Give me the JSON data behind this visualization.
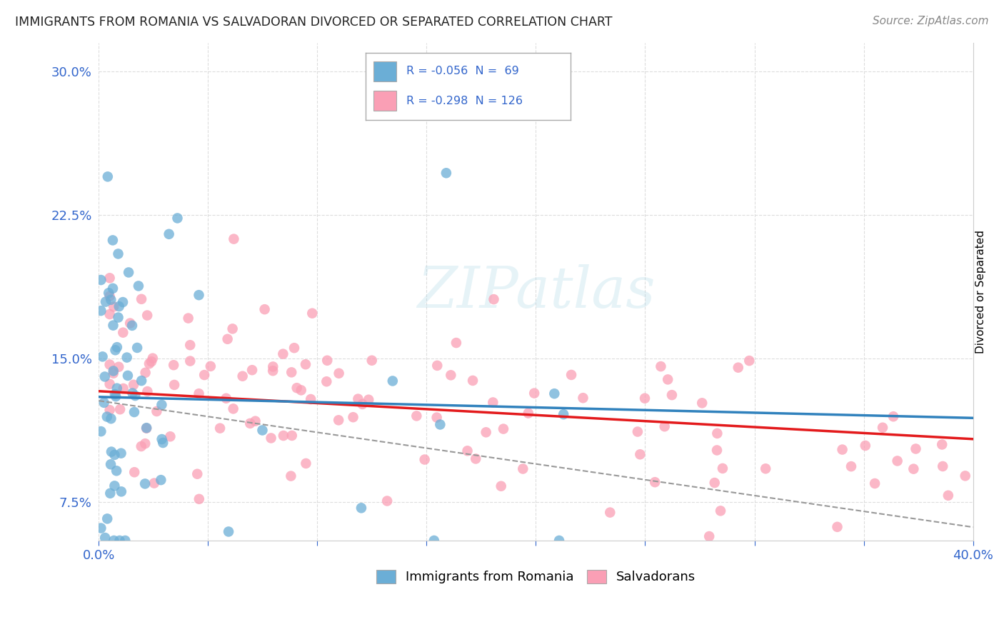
{
  "title": "IMMIGRANTS FROM ROMANIA VS SALVADORAN DIVORCED OR SEPARATED CORRELATION CHART",
  "source": "Source: ZipAtlas.com",
  "ylabel": "Divorced or Separated",
  "legend1_label": "R = -0.056  N =  69",
  "legend2_label": "R = -0.298  N = 126",
  "legend1_R": -0.056,
  "legend1_N": 69,
  "legend2_R": -0.298,
  "legend2_N": 126,
  "color_romania": "#6baed6",
  "color_salvadoran": "#fa9fb5",
  "trendline_romania_color": "#3182bd",
  "trendline_salvadoran_color": "#e31a1c",
  "trendline_gray_color": "#999999",
  "yticks": [
    0.075,
    0.15,
    0.225,
    0.3
  ],
  "ytick_labels": [
    "7.5%",
    "15.0%",
    "22.5%",
    "30.0%"
  ],
  "xlim": [
    0.0,
    0.4
  ],
  "ylim": [
    0.055,
    0.315
  ],
  "watermark": "ZIPatlas",
  "title_color": "#222222",
  "source_color": "#888888",
  "axis_label_color": "#3366cc",
  "grid_color": "#dddddd",
  "background_color": "#ffffff"
}
